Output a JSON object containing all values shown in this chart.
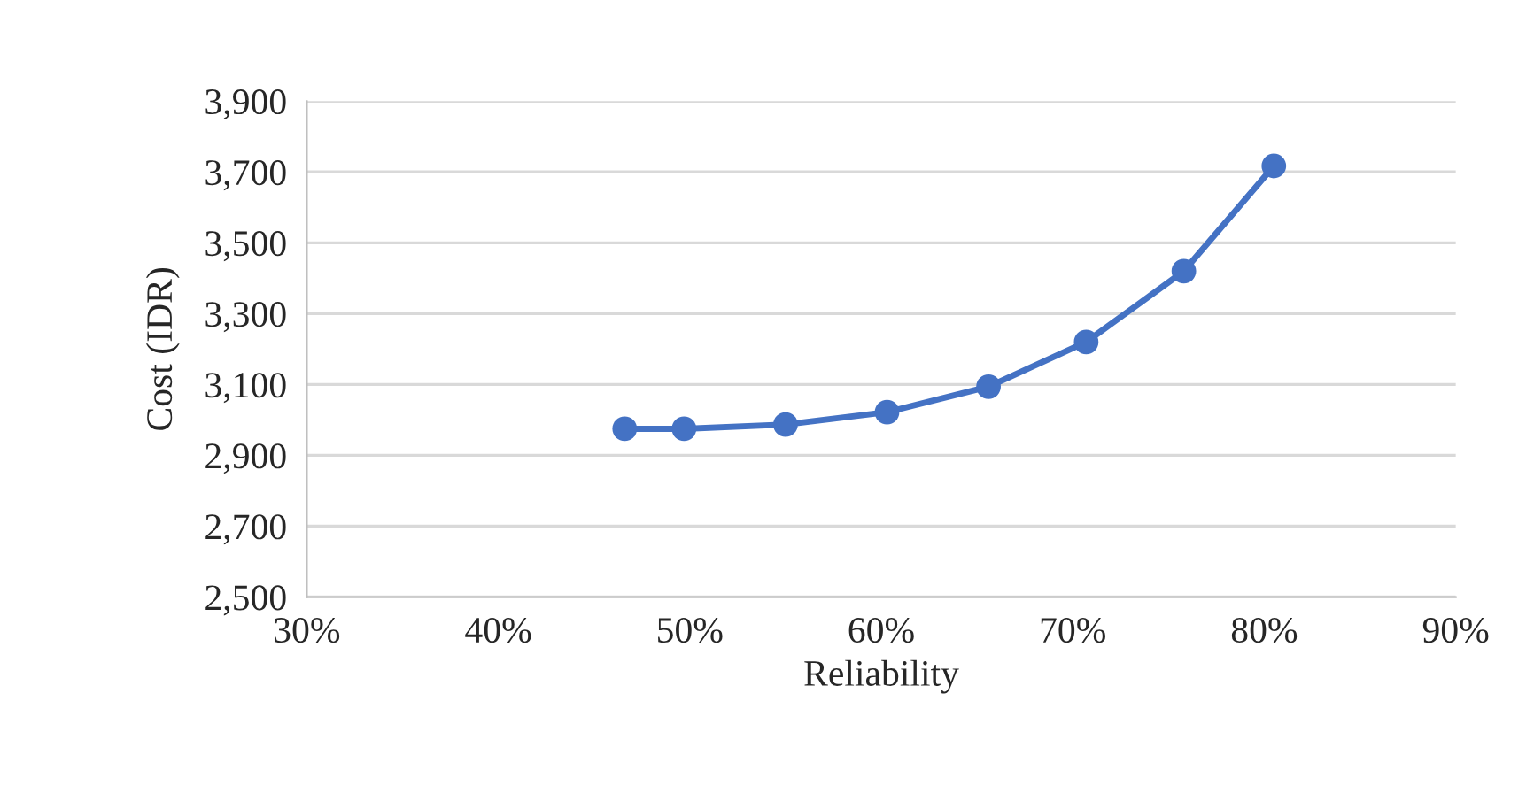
{
  "chart_data": {
    "type": "line",
    "xlabel": "Reliability",
    "ylabel": "Cost (IDR)",
    "x": [
      0.466,
      0.497,
      0.55,
      0.603,
      0.656,
      0.707,
      0.758,
      0.805
    ],
    "series": [
      {
        "color": "#4472c4",
        "values": [
          2975,
          2975,
          2987,
          3022,
          3094,
          3220,
          3420,
          3717
        ]
      }
    ],
    "xlim": [
      0.3,
      0.9
    ],
    "xticks": [
      {
        "value": 0.3,
        "label": "30%"
      },
      {
        "value": 0.4,
        "label": "40%"
      },
      {
        "value": 0.5,
        "label": "50%"
      },
      {
        "value": 0.6,
        "label": "60%"
      },
      {
        "value": 0.7,
        "label": "70%"
      },
      {
        "value": 0.8,
        "label": "80%"
      },
      {
        "value": 0.9,
        "label": "90%"
      }
    ],
    "ylim": [
      2500,
      3900
    ],
    "yticks": [
      {
        "value": 2500,
        "label": "2,500"
      },
      {
        "value": 2700,
        "label": "2,700"
      },
      {
        "value": 2900,
        "label": "2,900"
      },
      {
        "value": 3100,
        "label": "3,100"
      },
      {
        "value": 3300,
        "label": "3,300"
      },
      {
        "value": 3500,
        "label": "3,500"
      },
      {
        "value": 3700,
        "label": "3,700"
      },
      {
        "value": 3900,
        "label": "3,900"
      }
    ],
    "grid": "y",
    "marker": "circle",
    "line_style": "solid"
  }
}
